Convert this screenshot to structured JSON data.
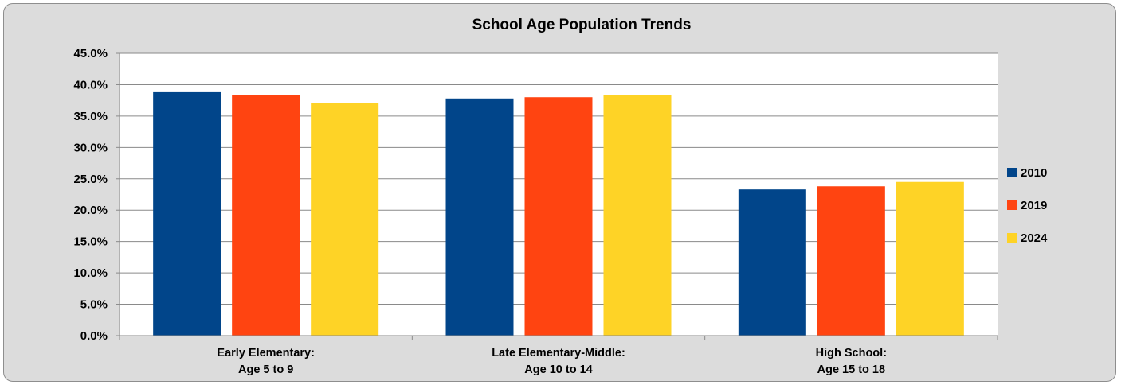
{
  "chart_data": {
    "type": "bar",
    "title": "School Age Population Trends",
    "xlabel": "",
    "ylabel": "",
    "ylim": [
      0,
      45
    ],
    "ytick_step": 5,
    "ytick_labels": [
      "0.0%",
      "5.0%",
      "10.0%",
      "15.0%",
      "20.0%",
      "25.0%",
      "30.0%",
      "35.0%",
      "40.0%",
      "45.0%"
    ],
    "categories": [
      [
        "Early Elementary:",
        "Age 5 to 9"
      ],
      [
        "Late Elementary-Middle:",
        "Age 10 to 14"
      ],
      [
        "High School:",
        "Age 15 to 18"
      ]
    ],
    "series": [
      {
        "name": "2010",
        "color": "#01458a",
        "values": [
          38.8,
          37.8,
          23.3
        ]
      },
      {
        "name": "2019",
        "color": "#ff4411",
        "values": [
          38.3,
          38.0,
          23.8
        ]
      },
      {
        "name": "2024",
        "color": "#fed326",
        "values": [
          37.1,
          38.3,
          24.5
        ]
      }
    ],
    "grid": true,
    "legend_position": "right",
    "colors": {
      "frame_background": "#dcdcdc",
      "plot_background": "#ffffff",
      "gridline": "#8a8a8a"
    }
  }
}
